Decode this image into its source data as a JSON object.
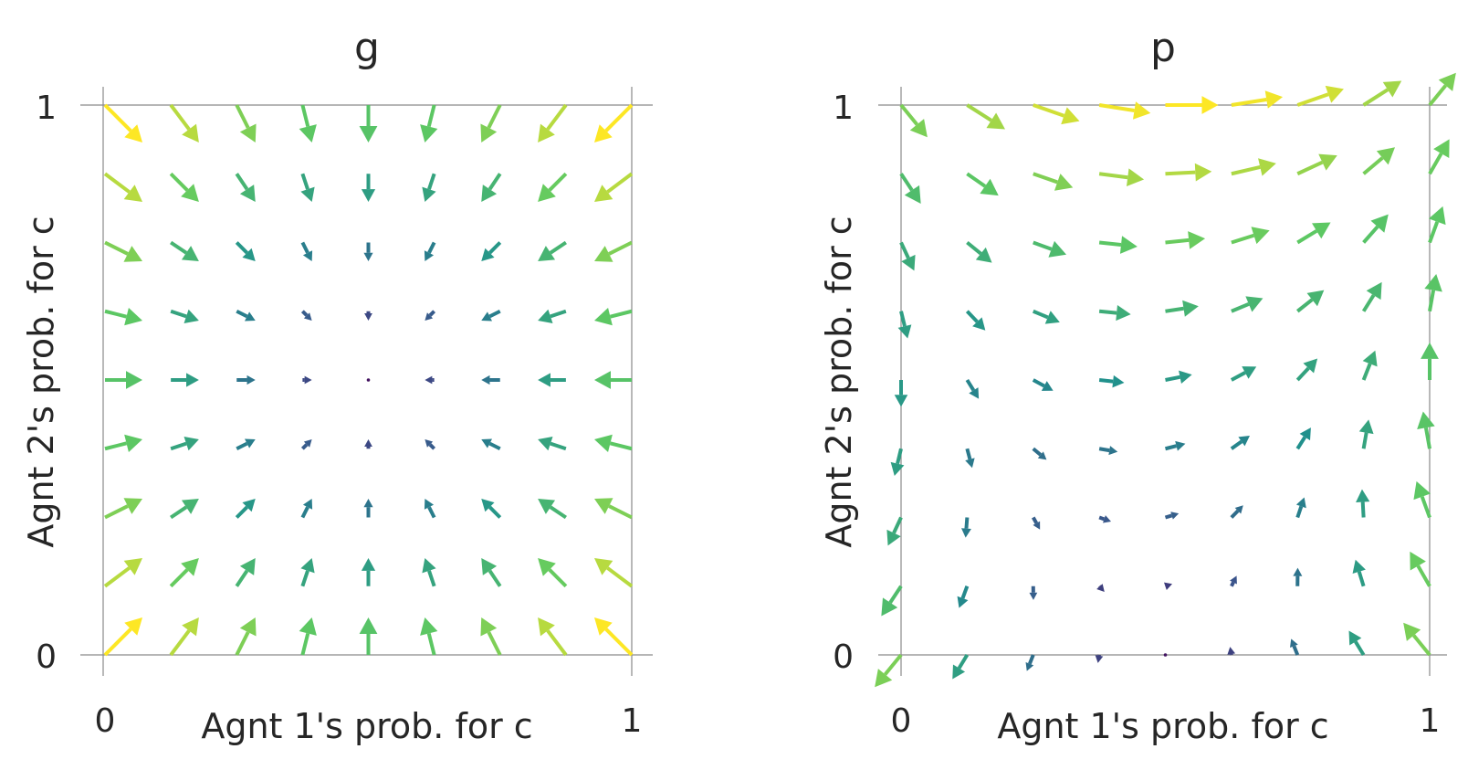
{
  "chart_data": [
    {
      "type": "quiver",
      "title": "g",
      "xlabel": "Agnt 1's prob. for c",
      "ylabel": "Agnt 2's prob. for c",
      "xlim": [
        0,
        1
      ],
      "ylim": [
        0,
        1
      ],
      "xticks": [
        "0",
        "1"
      ],
      "yticks": [
        "0",
        "1"
      ],
      "grid": false,
      "colormap": "viridis",
      "grid_x": [
        0.0,
        0.125,
        0.25,
        0.375,
        0.5,
        0.625,
        0.75,
        0.875,
        1.0
      ],
      "grid_y": [
        0.0,
        0.125,
        0.25,
        0.375,
        0.5,
        0.625,
        0.75,
        0.875,
        1.0
      ],
      "field": "g"
    },
    {
      "type": "quiver",
      "title": "p",
      "xlabel": "Agnt 1's prob. for c",
      "ylabel": "Agnt 2's prob. for c",
      "xlim": [
        0,
        1
      ],
      "ylim": [
        0,
        1
      ],
      "xticks": [
        "0",
        "1"
      ],
      "yticks": [
        "0",
        "1"
      ],
      "grid": false,
      "colormap": "viridis",
      "grid_x": [
        0.0,
        0.125,
        0.25,
        0.375,
        0.5,
        0.625,
        0.75,
        0.875,
        1.0
      ],
      "grid_y": [
        0.0,
        0.125,
        0.25,
        0.375,
        0.5,
        0.625,
        0.75,
        0.875,
        1.0
      ],
      "field": "p"
    }
  ]
}
